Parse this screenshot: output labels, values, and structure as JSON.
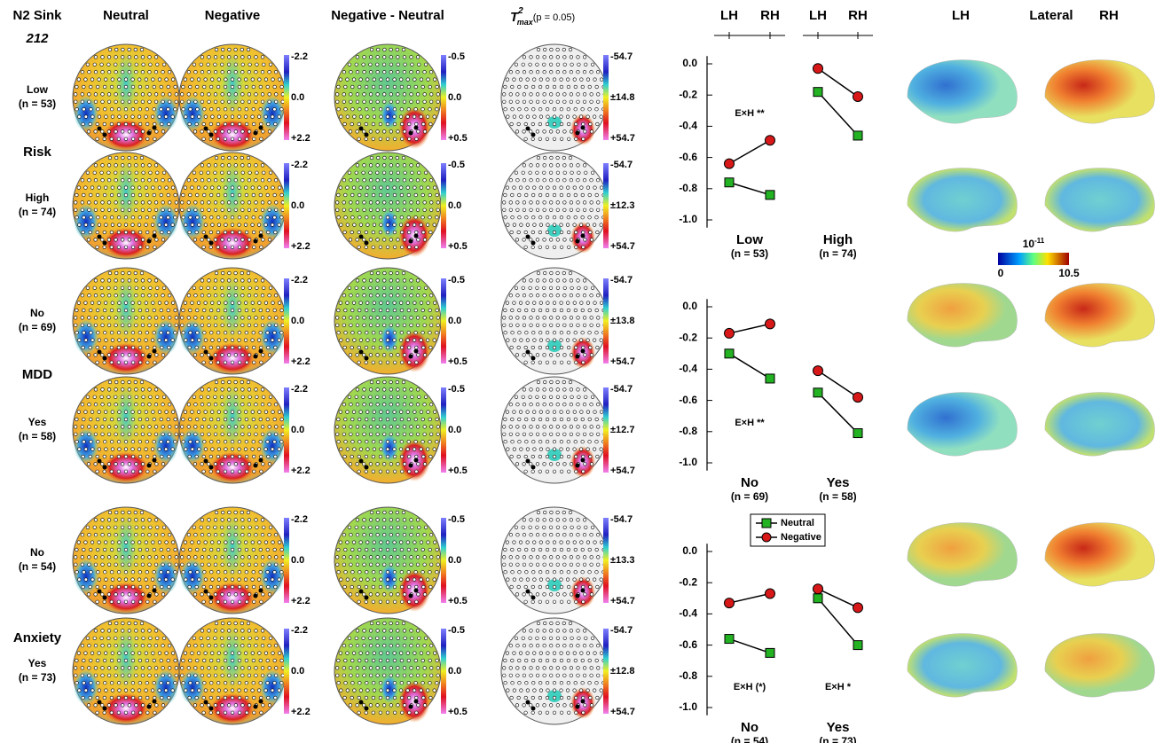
{
  "header": {
    "title": "N2 Sink",
    "subtitle": "212",
    "columns": [
      "Neutral",
      "Negative",
      "Negative - Neutral"
    ],
    "tmax": {
      "base": "T",
      "sup": "2",
      "sub": "max",
      "p": "(p = 0.05)"
    }
  },
  "factors": [
    {
      "name": "Risk",
      "rows": [
        {
          "label": "Low",
          "n": "(n = 53)",
          "scales": [
            [
              "-2.2",
              "0.0",
              "+2.2"
            ],
            [
              "-0.5",
              "0.0",
              "+0.5"
            ],
            [
              "-54.7",
              "±14.8",
              "+54.7"
            ]
          ]
        },
        {
          "label": "High",
          "n": "(n = 74)",
          "scales": [
            [
              "-2.2",
              "0.0",
              "+2.2"
            ],
            [
              "-0.5",
              "0.0",
              "+0.5"
            ],
            [
              "-54.7",
              "±12.3",
              "+54.7"
            ]
          ]
        }
      ]
    },
    {
      "name": "MDD",
      "rows": [
        {
          "label": "No",
          "n": "(n = 69)",
          "scales": [
            [
              "-2.2",
              "0.0",
              "+2.2"
            ],
            [
              "-0.5",
              "0.0",
              "+0.5"
            ],
            [
              "-54.7",
              "±13.8",
              "+54.7"
            ]
          ]
        },
        {
          "label": "Yes",
          "n": "(n = 58)",
          "scales": [
            [
              "-2.2",
              "0.0",
              "+2.2"
            ],
            [
              "-0.5",
              "0.0",
              "+0.5"
            ],
            [
              "-54.7",
              "±12.7",
              "+54.7"
            ]
          ]
        }
      ]
    },
    {
      "name": "Anxiety",
      "rows": [
        {
          "label": "No",
          "n": "(n = 54)",
          "scales": [
            [
              "-2.2",
              "0.0",
              "+2.2"
            ],
            [
              "-0.5",
              "0.0",
              "+0.5"
            ],
            [
              "-54.7",
              "±13.3",
              "+54.7"
            ]
          ]
        },
        {
          "label": "Yes",
          "n": "(n = 73)",
          "scales": [
            [
              "-2.2",
              "0.0",
              "+2.2"
            ],
            [
              "-0.5",
              "0.0",
              "+0.5"
            ],
            [
              "-54.7",
              "±12.8",
              "+54.7"
            ]
          ]
        }
      ]
    }
  ],
  "chart_data": [
    {
      "type": "line",
      "categories": [
        "LH",
        "RH"
      ],
      "ylim": [
        -1.05,
        0.05
      ],
      "yticks": [
        {
          "value": 0,
          "label": "0.0"
        },
        -0.2,
        -0.4,
        -0.6,
        -0.8,
        {
          "value": -1,
          "label": "-1.0"
        }
      ],
      "panels": [
        {
          "series": [
            {
              "name": "Neutral",
              "color": "#22b222",
              "values": [
                -0.76,
                -0.84
              ]
            },
            {
              "name": "Negative",
              "color": "#d81818",
              "values": [
                -0.64,
                -0.49
              ]
            }
          ],
          "annotation": "E×H **"
        },
        {
          "series": [
            {
              "name": "Neutral",
              "color": "#22b222",
              "values": [
                -0.18,
                -0.46
              ]
            },
            {
              "name": "Negative",
              "color": "#d81818",
              "values": [
                -0.03,
                -0.21
              ]
            }
          ]
        }
      ]
    },
    {
      "type": "line",
      "categories": [
        "LH",
        "RH"
      ],
      "ylim": [
        -1.05,
        0.05
      ],
      "yticks": [
        {
          "value": 0,
          "label": "0.0"
        },
        -0.2,
        -0.4,
        -0.6,
        -0.8,
        {
          "value": -1,
          "label": "-1.0"
        }
      ],
      "panels": [
        {
          "series": [
            {
              "name": "Neutral",
              "color": "#22b222",
              "values": [
                -0.3,
                -0.46
              ]
            },
            {
              "name": "Negative",
              "color": "#d81818",
              "values": [
                -0.17,
                -0.11
              ]
            }
          ],
          "annotation": "E×H **"
        },
        {
          "series": [
            {
              "name": "Neutral",
              "color": "#22b222",
              "values": [
                -0.55,
                -0.81
              ]
            },
            {
              "name": "Negative",
              "color": "#d81818",
              "values": [
                -0.41,
                -0.58
              ]
            }
          ]
        }
      ]
    },
    {
      "type": "line",
      "categories": [
        "LH",
        "RH"
      ],
      "ylim": [
        -1.05,
        0.05
      ],
      "yticks": [
        {
          "value": 0,
          "label": "0.0"
        },
        -0.2,
        -0.4,
        -0.6,
        -0.8,
        {
          "value": -1,
          "label": "-1.0"
        }
      ],
      "panels": [
        {
          "series": [
            {
              "name": "Neutral",
              "color": "#22b222",
              "values": [
                -0.56,
                -0.65
              ]
            },
            {
              "name": "Negative",
              "color": "#d81818",
              "values": [
                -0.33,
                -0.27
              ]
            }
          ],
          "annotation": "E×H (*)"
        },
        {
          "series": [
            {
              "name": "Neutral",
              "color": "#22b222",
              "values": [
                -0.3,
                -0.6
              ]
            },
            {
              "name": "Negative",
              "color": "#d81818",
              "values": [
                -0.24,
                -0.36
              ]
            }
          ],
          "annotation": "E×H *"
        }
      ]
    }
  ],
  "brains": {
    "headers": [
      "LH",
      "Lateral",
      "RH"
    ],
    "colorbar": {
      "base": "10",
      "exp": "-11",
      "min": "0",
      "max": "10.5"
    }
  }
}
